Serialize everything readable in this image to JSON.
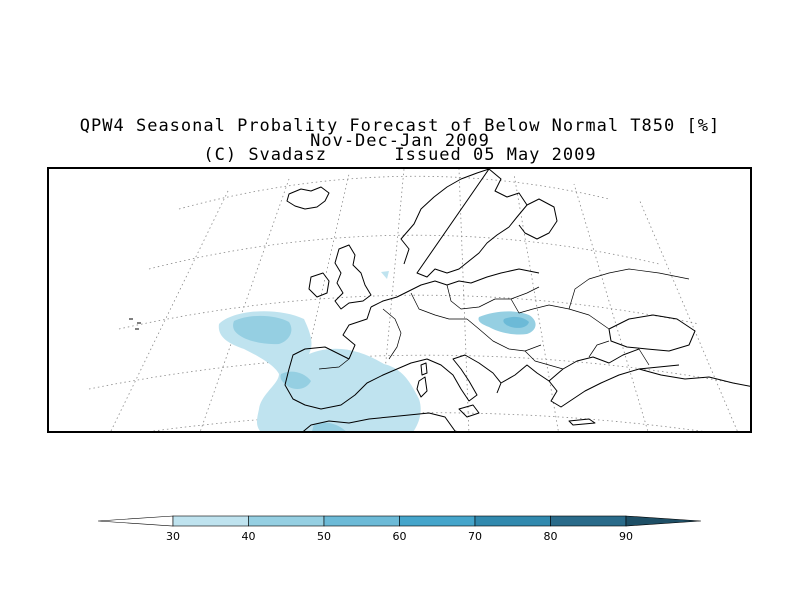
{
  "title": {
    "line1": "QPW4 Seasonal Probality Forecast of Below Normal T850 [%]",
    "line2": "Nov-Dec-Jan 2009",
    "line3": "(C) Svadasz      Issued 05 May 2009"
  },
  "map": {
    "region": "Europe",
    "variable": "probability of below normal T850",
    "highlighted_areas": [
      "Iberia and adjacent Atlantic",
      "Hungary / central Danube"
    ]
  },
  "legend": {
    "levels": [
      "30",
      "40",
      "50",
      "60",
      "70",
      "80",
      "90"
    ],
    "colors": [
      "#ffffff",
      "#bfe3ef",
      "#95cfe2",
      "#6cbad7",
      "#45a5cb",
      "#3189ae",
      "#2a6b8a",
      "#1e4f66"
    ]
  }
}
